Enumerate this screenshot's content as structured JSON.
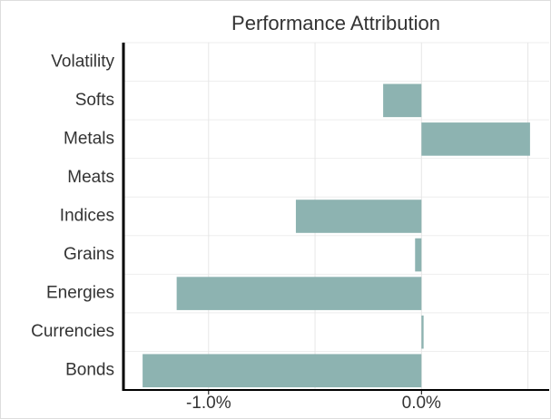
{
  "chart_data": {
    "type": "bar",
    "orientation": "horizontal",
    "title": "Performance Attribution",
    "categories": [
      "Volatility",
      "Softs",
      "Metals",
      "Meats",
      "Indices",
      "Grains",
      "Energies",
      "Currencies",
      "Bonds"
    ],
    "values": [
      0,
      -0.18,
      0.51,
      0,
      -0.59,
      -0.03,
      -1.15,
      0.01,
      -1.31
    ],
    "color": "#8db3b1",
    "xlim": [
      -1.4,
      0.6
    ],
    "xticks": [
      {
        "value": -1.0,
        "label": "-1.0%"
      },
      {
        "value": 0.0,
        "label": "0.0%"
      }
    ],
    "minor_xticks": [
      -0.5,
      0.5
    ],
    "grid": true
  }
}
